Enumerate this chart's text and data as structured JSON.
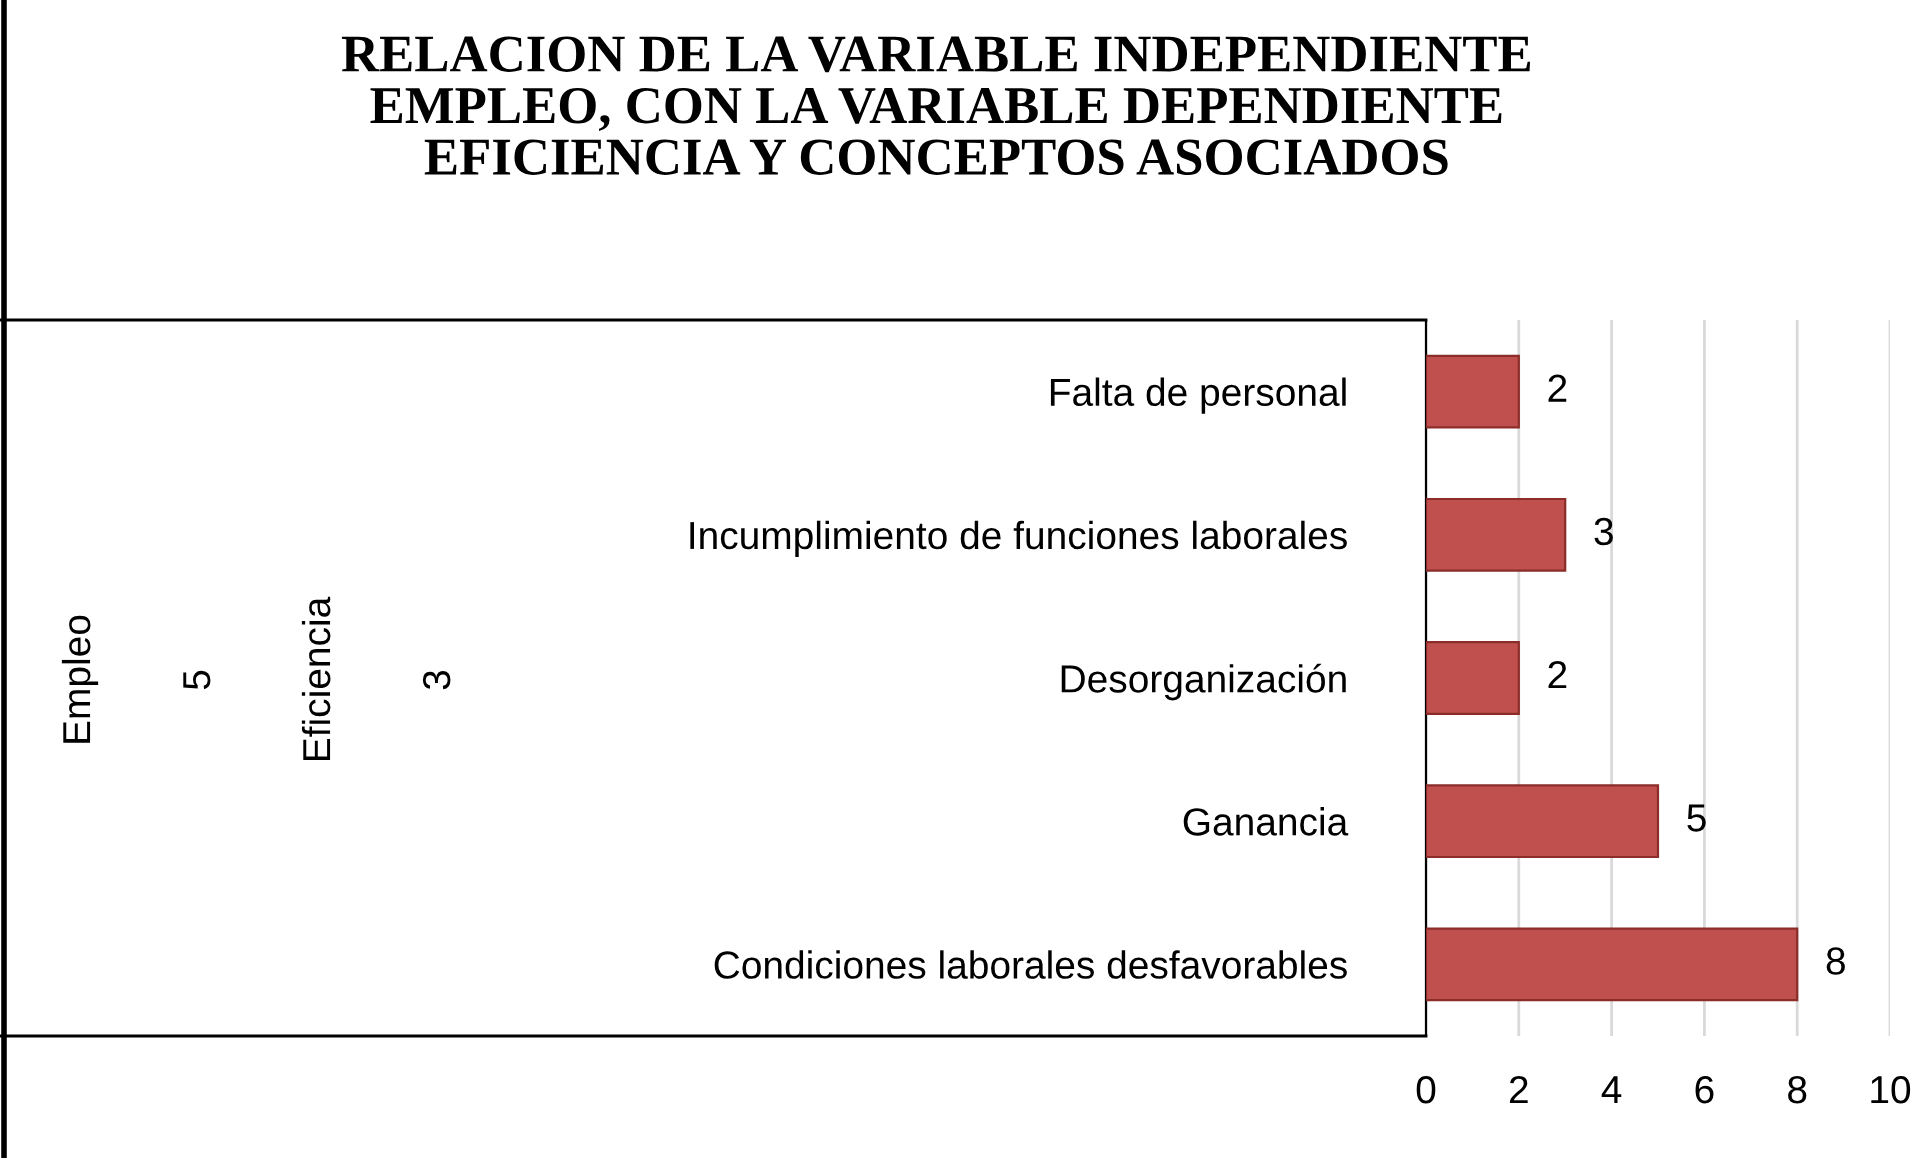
{
  "chart_data": {
    "type": "bar",
    "orientation": "horizontal",
    "title": "RELACION DE LA VARIABLE INDEPENDIENTE\nEMPLEO, CON LA VARIABLE DEPENDIENTE\nEFICIENCIA Y CONCEPTOS ASOCIADOS",
    "categories": [
      "Falta de personal",
      "Incumplimiento de funciones laborales",
      "Desorganización",
      "Ganancia",
      "Condiciones laborales desfavorables"
    ],
    "values": [
      2,
      3,
      2,
      5,
      8
    ],
    "color": "#c0504d",
    "data_labels": true,
    "xlim": [
      0,
      10
    ],
    "xticks": [
      0,
      2,
      4,
      6,
      8,
      10
    ],
    "grid": "x",
    "annotations": [
      "Empleo",
      "5",
      "Eficiencia",
      "3"
    ]
  }
}
